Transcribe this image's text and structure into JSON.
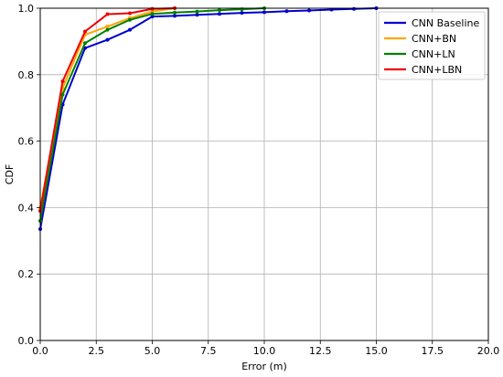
{
  "chart_data": {
    "type": "line",
    "title": "",
    "xlabel": "Error (m)",
    "ylabel": "CDF",
    "xlim": [
      0,
      20
    ],
    "ylim": [
      0,
      1
    ],
    "xticks": [
      "0.0",
      "2.5",
      "5.0",
      "7.5",
      "10.0",
      "12.5",
      "15.0",
      "17.5",
      "20.0"
    ],
    "yticks": [
      "0.0",
      "0.2",
      "0.4",
      "0.6",
      "0.8",
      "1.0"
    ],
    "grid": true,
    "legend_position": "top-right",
    "series": [
      {
        "name": "CNN Baseline",
        "color": "#0000cc",
        "x": [
          0,
          1,
          2,
          3,
          4,
          5,
          6,
          7,
          8,
          9,
          10,
          11,
          12,
          13,
          14,
          15
        ],
        "y": [
          0.335,
          0.71,
          0.88,
          0.905,
          0.935,
          0.975,
          0.977,
          0.98,
          0.983,
          0.986,
          0.988,
          0.991,
          0.993,
          0.996,
          0.998,
          1.0
        ]
      },
      {
        "name": "CNN+BN",
        "color": "#ffa500",
        "x": [
          0,
          1,
          2,
          3,
          4,
          5,
          6
        ],
        "y": [
          0.4,
          0.76,
          0.92,
          0.945,
          0.97,
          0.99,
          1.0
        ]
      },
      {
        "name": "CNN+LN",
        "color": "#008000",
        "x": [
          0,
          1,
          2,
          3,
          4,
          5,
          6,
          7,
          8,
          9,
          10
        ],
        "y": [
          0.36,
          0.74,
          0.895,
          0.935,
          0.965,
          0.983,
          0.987,
          0.99,
          0.994,
          0.997,
          1.0
        ]
      },
      {
        "name": "CNN+LBN",
        "color": "#ee0000",
        "x": [
          0,
          1,
          2,
          3,
          4,
          5,
          6
        ],
        "y": [
          0.39,
          0.78,
          0.93,
          0.982,
          0.985,
          0.998,
          1.0
        ]
      }
    ]
  }
}
